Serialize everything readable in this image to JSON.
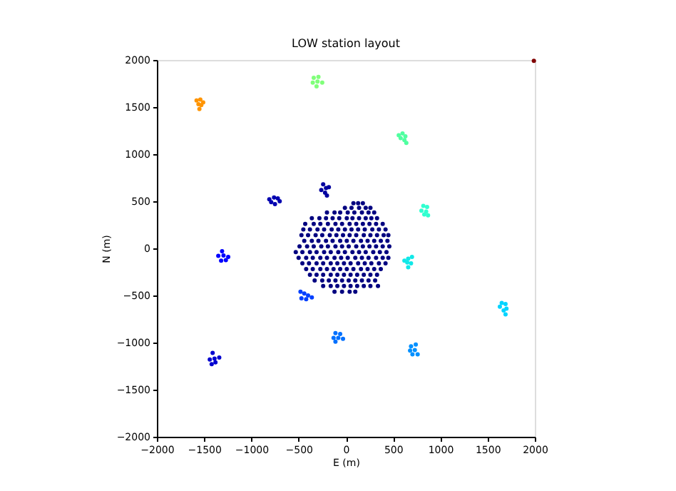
{
  "chart_data": {
    "type": "scatter",
    "title": "LOW station layout",
    "xlabel": "E (m)",
    "ylabel": "N (m)",
    "xlim": [
      -2000,
      2000
    ],
    "ylim": [
      -2000,
      2000
    ],
    "xticks": [
      -2000,
      -1500,
      -1000,
      -500,
      0,
      500,
      1000,
      1500,
      2000
    ],
    "yticks": [
      -2000,
      -1500,
      -1000,
      -500,
      0,
      500,
      1000,
      1500,
      2000
    ],
    "grid": false,
    "legend": false,
    "marker": "circle",
    "series": [
      {
        "color": "#000080",
        "x": [
          80,
          130,
          180,
          -10,
          60,
          140,
          210,
          260,
          -200,
          -120,
          -60,
          20,
          90,
          170,
          240,
          300,
          -360,
          -280,
          -210,
          -140,
          -70,
          10,
          70,
          140,
          210,
          270,
          330,
          -430,
          -340,
          -270,
          -190,
          -110,
          -40,
          40,
          110,
          180,
          250,
          320,
          390,
          -450,
          -380,
          -300,
          -230,
          -150,
          -80,
          -10,
          60,
          130,
          200,
          280,
          350,
          420,
          -470,
          -400,
          -320,
          -250,
          -170,
          -100,
          -30,
          40,
          110,
          190,
          260,
          330,
          400,
          450,
          -440,
          -360,
          -290,
          -210,
          -140,
          -60,
          10,
          80,
          160,
          230,
          300,
          370,
          440,
          -490,
          -410,
          -340,
          -260,
          -190,
          -110,
          -40,
          30,
          110,
          180,
          250,
          320,
          390,
          460,
          -530,
          -460,
          -380,
          -310,
          -230,
          -160,
          -80,
          -10,
          70,
          140,
          210,
          290,
          360,
          430,
          -500,
          -420,
          -350,
          -270,
          -200,
          -120,
          -50,
          20,
          100,
          170,
          240,
          320,
          390,
          450,
          -460,
          -390,
          -310,
          -240,
          -160,
          -90,
          -20,
          50,
          130,
          200,
          270,
          350,
          420,
          -420,
          -350,
          -270,
          -200,
          -130,
          -60,
          10,
          80,
          160,
          230,
          300,
          370,
          -380,
          -310,
          -240,
          -160,
          -90,
          -20,
          50,
          120,
          190,
          260,
          330,
          -330,
          -250,
          -180,
          -110,
          -40,
          30,
          100,
          170,
          240,
          310,
          -240,
          -160,
          -90,
          -20,
          50,
          120,
          190,
          260,
          340,
          -120,
          -40,
          40,
          100
        ],
        "values": [
          480,
          480,
          480,
          430,
          430,
          430,
          430,
          430,
          380,
          380,
          380,
          380,
          380,
          380,
          380,
          380,
          320,
          320,
          320,
          320,
          320,
          320,
          320,
          320,
          320,
          320,
          320,
          260,
          260,
          260,
          260,
          260,
          260,
          260,
          260,
          260,
          260,
          260,
          260,
          200,
          200,
          200,
          200,
          200,
          200,
          200,
          200,
          200,
          200,
          200,
          200,
          200,
          140,
          140,
          140,
          140,
          140,
          140,
          140,
          140,
          140,
          140,
          140,
          140,
          140,
          140,
          80,
          80,
          80,
          80,
          80,
          80,
          80,
          80,
          80,
          80,
          80,
          80,
          80,
          20,
          20,
          20,
          20,
          20,
          20,
          20,
          20,
          20,
          20,
          20,
          20,
          20,
          20,
          -40,
          -40,
          -40,
          -40,
          -40,
          -40,
          -40,
          -40,
          -40,
          -40,
          -40,
          -40,
          -40,
          -40,
          -100,
          -100,
          -100,
          -100,
          -100,
          -100,
          -100,
          -100,
          -100,
          -100,
          -100,
          -100,
          -100,
          -100,
          -160,
          -160,
          -160,
          -160,
          -160,
          -160,
          -160,
          -160,
          -160,
          -160,
          -160,
          -160,
          -160,
          -220,
          -220,
          -220,
          -220,
          -220,
          -220,
          -220,
          -220,
          -220,
          -220,
          -220,
          -220,
          -280,
          -280,
          -280,
          -280,
          -280,
          -280,
          -280,
          -280,
          -280,
          -280,
          -280,
          -340,
          -340,
          -340,
          -340,
          -340,
          -340,
          -340,
          -340,
          -340,
          -340,
          -400,
          -400,
          -400,
          -400,
          -400,
          -400,
          -400,
          -400,
          -400,
          -460,
          -460,
          -460,
          -460
        ]
      },
      {
        "color": "#00009f",
        "x": [
          -240,
          -260,
          -210,
          -180,
          -220,
          -200
        ],
        "values": [
          680,
          620,
          640,
          650,
          590,
          560
        ]
      },
      {
        "color": "#0000b0",
        "x": [
          -810,
          -760,
          -720,
          -790,
          -750,
          -700
        ],
        "values": [
          520,
          540,
          530,
          490,
          470,
          500
        ]
      },
      {
        "color": "#0000d0",
        "x": [
          -1410,
          -1440,
          -1390,
          -1340,
          -1420,
          -1380
        ],
        "values": [
          -1110,
          -1180,
          -1170,
          -1160,
          -1230,
          -1210
        ]
      },
      {
        "color": "#0000ff",
        "x": [
          -1310,
          -1350,
          -1295,
          -1270,
          -1320,
          -1245
        ],
        "values": [
          -30,
          -80,
          -75,
          -125,
          -130,
          -90
        ]
      },
      {
        "color": "#0040ff",
        "x": [
          -480,
          -440,
          -400,
          -470,
          -420,
          -360
        ],
        "values": [
          -460,
          -480,
          -500,
          -530,
          -540,
          -520
        ]
      },
      {
        "color": "#0070ff",
        "x": [
          -110,
          -60,
          -130,
          -80,
          -30,
          -110
        ],
        "values": [
          -900,
          -910,
          -950,
          -950,
          -960,
          -990
        ]
      },
      {
        "color": "#0090ff",
        "x": [
          690,
          740,
          680,
          730,
          760,
          705
        ],
        "values": [
          -1040,
          -1020,
          -1085,
          -1080,
          -1125,
          -1125
        ]
      },
      {
        "color": "#00d4ff",
        "x": [
          1650,
          1690,
          1630,
          1700,
          1670,
          1690
        ],
        "values": [
          -580,
          -590,
          -620,
          -640,
          -660,
          -700
        ]
      },
      {
        "color": "#10e8e8",
        "x": [
          620,
          660,
          700,
          650,
          690,
          660
        ],
        "values": [
          -130,
          -110,
          -90,
          -150,
          -160,
          -200
        ]
      },
      {
        "color": "#30ffd0",
        "x": [
          820,
          860,
          800,
          850,
          830,
          870
        ],
        "values": [
          450,
          440,
          400,
          390,
          360,
          350
        ]
      },
      {
        "color": "#50ffa0",
        "x": [
          560,
          600,
          630,
          580,
          620,
          640
        ],
        "values": [
          1200,
          1220,
          1190,
          1170,
          1150,
          1120
        ]
      },
      {
        "color": "#80ff7a",
        "x": [
          -340,
          -290,
          -350,
          -300,
          -250,
          -310
        ],
        "values": [
          1810,
          1820,
          1760,
          1770,
          1760,
          1720
        ]
      },
      {
        "color": "#ff9400",
        "x": [
          -1580,
          -1540,
          -1510,
          -1560,
          -1530,
          -1550
        ],
        "values": [
          1570,
          1580,
          1550,
          1530,
          1520,
          1480
        ]
      },
      {
        "color": "#800000",
        "x": [
          1990
        ],
        "values": [
          1990
        ]
      }
    ]
  }
}
